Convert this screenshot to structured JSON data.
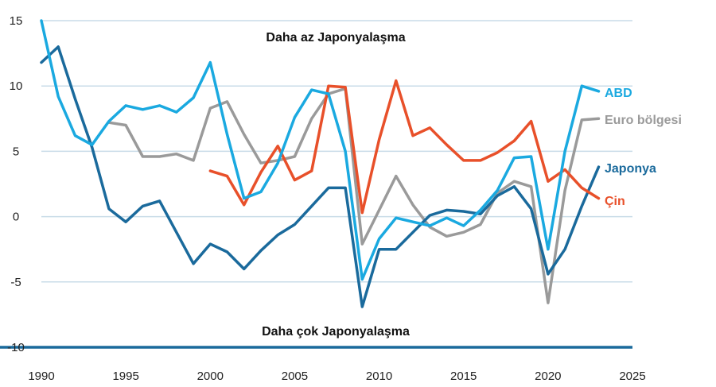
{
  "chart_data": {
    "type": "line",
    "x": [
      1990,
      1991,
      1992,
      1993,
      1994,
      1995,
      1996,
      1997,
      1998,
      1999,
      2000,
      2001,
      2002,
      2003,
      2004,
      2005,
      2006,
      2007,
      2008,
      2009,
      2010,
      2011,
      2012,
      2013,
      2014,
      2015,
      2016,
      2017,
      2018,
      2019,
      2020,
      2021,
      2022,
      2023
    ],
    "xlim": [
      1990,
      2025
    ],
    "ylim": [
      -10,
      15
    ],
    "xticks": [
      1990,
      1995,
      2000,
      2005,
      2010,
      2015,
      2020,
      2025
    ],
    "yticks": [
      15,
      10,
      5,
      0,
      -5,
      -10
    ],
    "grid": "horizontal",
    "annotations": {
      "top": "Daha az Japonyalaşma",
      "bottom": "Daha çok Japonyalaşma"
    },
    "series": [
      {
        "name": "ABD",
        "color": "#1aa9e0",
        "values": [
          15.0,
          9.2,
          6.2,
          5.5,
          7.3,
          8.5,
          8.2,
          8.5,
          8.0,
          9.1,
          11.8,
          6.3,
          1.4,
          1.9,
          4.1,
          7.6,
          9.7,
          9.4,
          5.0,
          -4.8,
          -1.7,
          -0.1,
          -0.4,
          -0.7,
          -0.1,
          -0.7,
          0.5,
          2.0,
          4.5,
          4.6,
          -2.5,
          5.0,
          10.0,
          9.6
        ]
      },
      {
        "name": "Euro bölgesi",
        "color": "#9a9a9a",
        "values": [
          null,
          null,
          null,
          null,
          7.2,
          7.0,
          4.6,
          4.6,
          4.8,
          4.3,
          8.3,
          8.8,
          6.3,
          4.1,
          4.3,
          4.6,
          7.5,
          9.4,
          9.8,
          -2.1,
          0.5,
          3.1,
          0.9,
          -0.8,
          -1.5,
          -1.2,
          -0.6,
          1.8,
          2.7,
          2.3,
          -6.6,
          2.0,
          7.4,
          7.5
        ]
      },
      {
        "name": "Japonya",
        "color": "#1a6a9c",
        "values": [
          11.8,
          13.0,
          9.0,
          5.3,
          0.6,
          -0.4,
          0.8,
          1.2,
          -1.2,
          -3.6,
          -2.1,
          -2.7,
          -4.0,
          -2.6,
          -1.4,
          -0.6,
          0.8,
          2.2,
          2.2,
          -6.9,
          -2.5,
          -2.5,
          -1.2,
          0.1,
          0.5,
          0.4,
          0.2,
          1.6,
          2.3,
          0.6,
          -4.4,
          -2.5,
          0.8,
          3.8
        ]
      },
      {
        "name": "Çin",
        "color": "#e8502a",
        "values": [
          null,
          null,
          null,
          null,
          null,
          null,
          null,
          null,
          null,
          null,
          3.5,
          3.1,
          0.9,
          3.4,
          5.4,
          2.8,
          3.5,
          10.0,
          9.9,
          0.3,
          5.9,
          10.4,
          6.2,
          6.8,
          5.5,
          4.3,
          4.3,
          4.9,
          5.8,
          7.3,
          2.7,
          3.6,
          2.2,
          1.4
        ]
      }
    ]
  }
}
